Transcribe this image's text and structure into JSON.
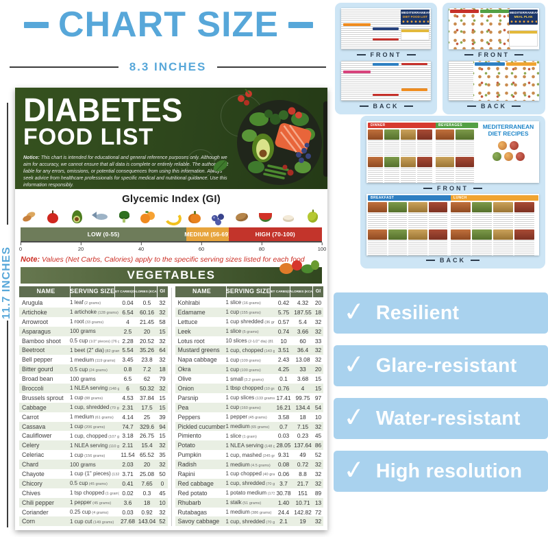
{
  "header": {
    "title": "CHART SIZE",
    "width_label": "8.3 INCHES",
    "height_label": "11.7 INCHES"
  },
  "poster": {
    "title_line1": "DIABETES",
    "title_line2": "FOOD LIST",
    "notice_label": "Notice:",
    "notice_text": "This chart is intended for educational and general reference purposes only. Although we aim for accuracy, we cannot ensure that all data is complete or entirely reliable. The author is not liable for any errors, omissions, or potential consequences from using this information. Always seek advice from healthcare professionals for specific medical and nutritional guidance. Use this information responsibly.",
    "gi": {
      "title": "Glycemic Index (GI)",
      "icons": [
        "almonds",
        "apple",
        "avocado",
        "fish",
        "broccoli",
        "orange",
        "banana",
        "pumpkin",
        "blueberries",
        "potato",
        "watermelon",
        "rice",
        "guava"
      ],
      "segments": [
        {
          "label": "LOW (0-55)",
          "range": [
            0,
            55
          ],
          "color": "#6e7c5a"
        },
        {
          "label": "MEDIUM (56-69)",
          "range": [
            55,
            69
          ],
          "color": "#e7a43c"
        },
        {
          "label": "HIGH (70-100)",
          "range": [
            69,
            100
          ],
          "color": "#c3342b"
        }
      ],
      "axis_ticks": [
        "0",
        "20",
        "40",
        "60",
        "80",
        "100"
      ]
    },
    "note_label": "Note:",
    "note_text": "Values (Net Carbs, Calories) apply to the specific serving sizes listed for each food",
    "table": {
      "title": "VEGETABLES",
      "columns": [
        "NAME",
        "SERVING SIZE",
        "NET CARBS(G)",
        "CALORIES (KCAL)",
        "GI"
      ],
      "left_rows": [
        {
          "name": "Arugula",
          "serving": "1 leaf",
          "serving_note": "(2 grams)",
          "net_carbs": "0.04",
          "calories": "0.5",
          "gi": "32"
        },
        {
          "name": "Artichoke",
          "serving": "1 artichoke",
          "serving_note": "(128 grams)",
          "net_carbs": "6.54",
          "calories": "60.16",
          "gi": "32"
        },
        {
          "name": "Arrowroot",
          "serving": "1 root",
          "serving_note": "(33 grams)",
          "net_carbs": "4",
          "calories": "21.45",
          "gi": "58"
        },
        {
          "name": "Asparagus",
          "serving": "100 grams",
          "serving_note": "",
          "net_carbs": "2.5",
          "calories": "20",
          "gi": "15"
        },
        {
          "name": "Bamboo shoot",
          "serving": "0.5 cup",
          "serving_note": "(1/2\" pieces) (76 grams)",
          "net_carbs": "2.28",
          "calories": "20.52",
          "gi": "32"
        },
        {
          "name": "Beetroot",
          "serving": "1 beet (2\" dia)",
          "serving_note": "(82 grams)",
          "net_carbs": "5.54",
          "calories": "35.26",
          "gi": "64"
        },
        {
          "name": "Bell pepper",
          "serving": "1 medium",
          "serving_note": "(119 grams)",
          "net_carbs": "3.45",
          "calories": "23.8",
          "gi": "32"
        },
        {
          "name": "Bitter gourd",
          "serving": "0.5 cup",
          "serving_note": "(24 grams)",
          "net_carbs": "0.8",
          "calories": "7.2",
          "gi": "18"
        },
        {
          "name": "Broad bean",
          "serving": "100 grams",
          "serving_note": "",
          "net_carbs": "6.5",
          "calories": "62",
          "gi": "79"
        },
        {
          "name": "Broccoli",
          "serving": "1 NLEA serving",
          "serving_note": "(148 grams)",
          "net_carbs": "6",
          "calories": "50.32",
          "gi": "32"
        },
        {
          "name": "Brussels sprout",
          "serving": "1 cup",
          "serving_note": "(88 grams)",
          "net_carbs": "4.53",
          "calories": "37.84",
          "gi": "15"
        },
        {
          "name": "Cabbage",
          "serving": "1 cup, shredded",
          "serving_note": "(70 grams)",
          "net_carbs": "2.31",
          "calories": "17.5",
          "gi": "15"
        },
        {
          "name": "Carrot",
          "serving": "1 medium",
          "serving_note": "(61 grams)",
          "net_carbs": "4.14",
          "calories": "25",
          "gi": "39"
        },
        {
          "name": "Cassava",
          "serving": "1 cup",
          "serving_note": "(206 grams)",
          "net_carbs": "74.7",
          "calories": "329.6",
          "gi": "94"
        },
        {
          "name": "Cauliflower",
          "serving": "1 cup, chopped",
          "serving_note": "(107 grams)",
          "net_carbs": "3.18",
          "calories": "26.75",
          "gi": "15"
        },
        {
          "name": "Celery",
          "serving": "1 NLEA serving",
          "serving_note": "(110 grams)",
          "net_carbs": "2.11",
          "calories": "15.4",
          "gi": "32"
        },
        {
          "name": "Celeriac",
          "serving": "1 cup",
          "serving_note": "(156 grams)",
          "net_carbs": "11.54",
          "calories": "65.52",
          "gi": "35"
        },
        {
          "name": "Chard",
          "serving": "100 grams",
          "serving_note": "",
          "net_carbs": "2.03",
          "calories": "20",
          "gi": "32"
        },
        {
          "name": "Chayote",
          "serving": "1 cup (1\" pieces)",
          "serving_note": "(132 grams)",
          "net_carbs": "3.71",
          "calories": "25.08",
          "gi": "50"
        },
        {
          "name": "Chicory",
          "serving": "0.5 cup",
          "serving_note": "(45 grams)",
          "net_carbs": "0.41",
          "calories": "7.65",
          "gi": "0"
        },
        {
          "name": "Chives",
          "serving": "1 tsp chopped",
          "serving_note": "(1 gram)",
          "net_carbs": "0.02",
          "calories": "0.3",
          "gi": "45"
        },
        {
          "name": "Chili pepper",
          "serving": "1 pepper",
          "serving_note": "(45 grams)",
          "net_carbs": "3.6",
          "calories": "18",
          "gi": "10"
        },
        {
          "name": "Coriander",
          "serving": "0.25 cup",
          "serving_note": "(4 grams)",
          "net_carbs": "0.03",
          "calories": "0.92",
          "gi": "32"
        },
        {
          "name": "Corn",
          "serving": "1 cup cut",
          "serving_note": "(149 grams)",
          "net_carbs": "27.68",
          "calories": "143.04",
          "gi": "52"
        }
      ],
      "right_rows": [
        {
          "name": "Kohlrabi",
          "serving": "1 slice",
          "serving_note": "(16 grams)",
          "net_carbs": "0.42",
          "calories": "4.32",
          "gi": "20"
        },
        {
          "name": "Edamame",
          "serving": "1 cup",
          "serving_note": "(155 grams)",
          "net_carbs": "5.75",
          "calories": "187.55",
          "gi": "18"
        },
        {
          "name": "Lettuce",
          "serving": "1 cup shredded",
          "serving_note": "(36 grams)",
          "net_carbs": "0.57",
          "calories": "5.4",
          "gi": "32"
        },
        {
          "name": "Leek",
          "serving": "1 slice",
          "serving_note": "(5 grams)",
          "net_carbs": "0.74",
          "calories": "3.66",
          "gi": "32"
        },
        {
          "name": "Lotus root",
          "serving": "10 slices",
          "serving_note": "(2-1/2\" dia) (81 grams)",
          "net_carbs": "10",
          "calories": "60",
          "gi": "33"
        },
        {
          "name": "Mustard greens",
          "serving": "1 cup, chopped",
          "serving_note": "(143 grams)",
          "net_carbs": "3.51",
          "calories": "36.4",
          "gi": "32"
        },
        {
          "name": "Napa cabbage",
          "serving": "1 cup",
          "serving_note": "(109 grams)",
          "net_carbs": "2.43",
          "calories": "13.08",
          "gi": "32"
        },
        {
          "name": "Okra",
          "serving": "1 cup",
          "serving_note": "(100 grams)",
          "net_carbs": "4.25",
          "calories": "33",
          "gi": "20"
        },
        {
          "name": "Olive",
          "serving": "1 small",
          "serving_note": "(3.2 grams)",
          "net_carbs": "0.1",
          "calories": "3.68",
          "gi": "15"
        },
        {
          "name": "Onion",
          "serving": "1 tbsp chopped",
          "serving_note": "(10 grams)",
          "net_carbs": "0.76",
          "calories": "4",
          "gi": "15"
        },
        {
          "name": "Parsnip",
          "serving": "1 cup slices",
          "serving_note": "(133 grams)",
          "net_carbs": "17.41",
          "calories": "99.75",
          "gi": "97"
        },
        {
          "name": "Pea",
          "serving": "1 cup",
          "serving_note": "(160 grams)",
          "net_carbs": "16.21",
          "calories": "134.4",
          "gi": "54"
        },
        {
          "name": "Peppers",
          "serving": "1 pepper",
          "serving_note": "(45 grams)",
          "net_carbs": "3.58",
          "calories": "18",
          "gi": "10"
        },
        {
          "name": "Pickled cucumber",
          "serving": "1 medium",
          "serving_note": "(65 grams)",
          "net_carbs": "0.7",
          "calories": "7.15",
          "gi": "32"
        },
        {
          "name": "Pimiento",
          "serving": "1 slice",
          "serving_note": "(1 gram)",
          "net_carbs": "0.03",
          "calories": "0.23",
          "gi": "45"
        },
        {
          "name": "Potato",
          "serving": "1 NLEA serving",
          "serving_note": "(148 grams)",
          "net_carbs": "28.05",
          "calories": "137.64",
          "gi": "86"
        },
        {
          "name": "Pumpkin",
          "serving": "1 cup, mashed",
          "serving_note": "(245 grams)",
          "net_carbs": "9.31",
          "calories": "49",
          "gi": "52"
        },
        {
          "name": "Radish",
          "serving": "1 medium",
          "serving_note": "(4.5 grams)",
          "net_carbs": "0.08",
          "calories": "0.72",
          "gi": "32"
        },
        {
          "name": "Rapini",
          "serving": "1 cup chopped",
          "serving_note": "(40 grams)",
          "net_carbs": "0.06",
          "calories": "8.8",
          "gi": "32"
        },
        {
          "name": "Red cabbage",
          "serving": "1 cup, shredded",
          "serving_note": "(70 grams)",
          "net_carbs": "3.7",
          "calories": "21.7",
          "gi": "32"
        },
        {
          "name": "Red potato",
          "serving": "1 potato medium",
          "serving_note": "(173 grams)",
          "net_carbs": "30.78",
          "calories": "151",
          "gi": "89"
        },
        {
          "name": "Rhubarb",
          "serving": "1 stalk",
          "serving_note": "(51 grams)",
          "net_carbs": "1.40",
          "calories": "10.71",
          "gi": "13"
        },
        {
          "name": "Rutabagas",
          "serving": "1 medium",
          "serving_note": "(386 grams)",
          "net_carbs": "24.4",
          "calories": "142.82",
          "gi": "72"
        },
        {
          "name": "Savoy cabbage",
          "serving": "1 cup, shredded",
          "serving_note": "(70 grams)",
          "net_carbs": "2.1",
          "calories": "19",
          "gi": "32"
        }
      ]
    }
  },
  "thumbnails": {
    "front_label": "FRONT",
    "back_label": "BACK",
    "cards": [
      {
        "title_line1": "MEDITERRANEAN",
        "title_line2": "DIET FOOD LIST"
      },
      {
        "title_line1": "MEDITERRANEAN",
        "title_line2": "MEAL PLAN"
      },
      {
        "title_line1": "MEDITERRANEAN",
        "title_line2": "DIET RECIPES",
        "sections": [
          "DINNER",
          "BEVERAGES",
          "BREAKFAST",
          "LUNCH"
        ]
      }
    ]
  },
  "features": {
    "check_glyph": "✓",
    "items": [
      "Resilient",
      "Glare-resistant",
      "Water-resistant",
      "High resolution"
    ]
  },
  "colors": {
    "accent_blue": "#57a7d9",
    "feature_bar": "#a9d2ee",
    "card_bg": "#cde5f5",
    "poster_green": "#2d451c",
    "gi_low": "#6e7c5a",
    "gi_medium": "#e7a43c",
    "gi_high": "#c3342b",
    "note_red": "#cb2c22"
  }
}
